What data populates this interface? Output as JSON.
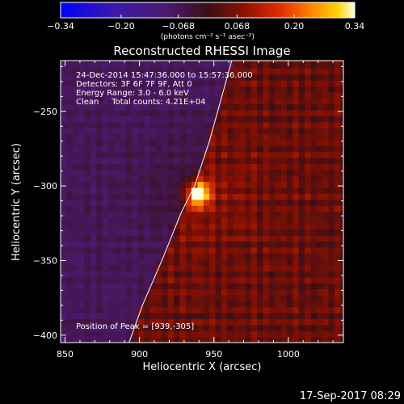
{
  "chart_data": {
    "type": "heatmap",
    "title": "Reconstructed RHESSI Image",
    "xlabel": "Heliocentric X (arcsec)",
    "ylabel": "Heliocentric Y (arcsec)",
    "xlim": [
      847,
      1037
    ],
    "ylim": [
      -405,
      -216
    ],
    "x_ticks": [
      "850",
      "900",
      "950",
      "1000"
    ],
    "x_tick_values": [
      850,
      900,
      950,
      1000
    ],
    "y_ticks": [
      "−250",
      "−300",
      "−350",
      "−400"
    ],
    "y_tick_values": [
      -250,
      -300,
      -350,
      -400
    ],
    "colorbar": {
      "range": [
        -0.34,
        0.34
      ],
      "ticks": [
        "−0.34",
        "−0.20",
        "−0.068",
        "0.068",
        "0.20",
        "0.34"
      ],
      "tick_values": [
        -0.34,
        -0.2,
        -0.068,
        0.068,
        0.2,
        0.34
      ],
      "units_text": "(photons cm⁻² s⁻¹ asec⁻²)"
    },
    "peak": {
      "x": 939,
      "y": -305,
      "value": 0.34,
      "sigma": 6
    },
    "limb": [
      [
        893,
        -405
      ],
      [
        902,
        -380
      ],
      [
        915,
        -350
      ],
      [
        928,
        -318
      ],
      [
        937,
        -300
      ],
      [
        947,
        -270
      ],
      [
        962,
        -216
      ]
    ],
    "annotations": {
      "line1": "24-Dec-2014 15:47:36.000 to 15:57:36.000",
      "line2": "Detectors: 3F 6F 7F 9F, Att 0",
      "line3": "Energy Range: 3.0 - 6.0 keV",
      "line4": "Clean     Total counts: 4.21E+04",
      "peak_text": "Position of Peak = [939,-305]"
    },
    "grid": false
  },
  "footer": {
    "date": "17-Sep-2017 08:29"
  }
}
